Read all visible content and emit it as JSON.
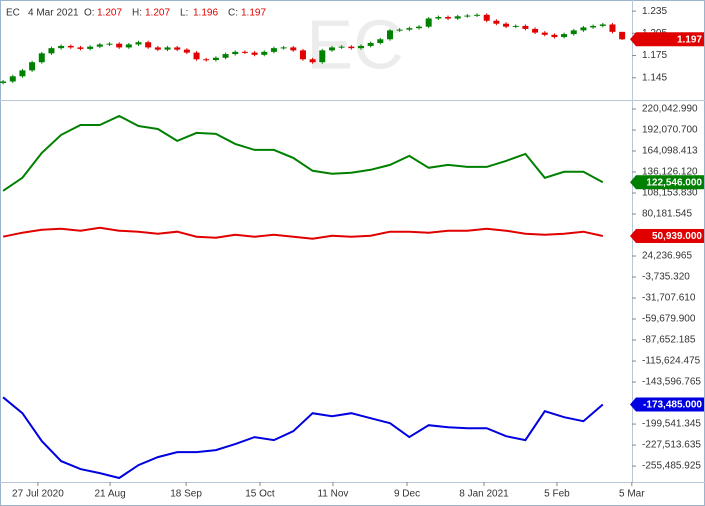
{
  "chart_data": [
    {
      "type": "candlestick",
      "symbol": "EC",
      "date": "4 Mar 2021",
      "header_labels": [
        "O:",
        "H:",
        "L:",
        "C:"
      ],
      "up_color": "#008000",
      "down_color": "#e00000",
      "xlim": [
        -0.16,
        32.51
      ],
      "ylim": [
        1.115,
        1.25
      ],
      "yticks": [
        1.235,
        1.205,
        1.175,
        1.145
      ],
      "x": [
        0,
        0.5,
        1,
        1.5,
        2,
        2.5,
        3,
        3.5,
        4,
        4.5,
        5,
        5.5,
        6,
        6.5,
        7,
        7.5,
        8,
        8.5,
        9,
        9.5,
        10,
        10.5,
        11,
        11.5,
        12,
        12.5,
        13,
        13.5,
        14,
        14.5,
        15,
        15.5,
        16,
        16.5,
        17,
        17.5,
        18,
        18.5,
        19,
        19.5,
        20,
        20.5,
        21,
        21.5,
        22,
        22.5,
        23,
        23.5,
        24,
        24.5,
        25,
        25.5,
        26,
        26.5,
        27,
        27.5,
        28,
        28.5,
        29,
        29.5,
        30,
        30.5,
        31,
        31.5,
        32
      ],
      "ohlc": [
        [
          1.138,
          1.142,
          1.136,
          1.14
        ],
        [
          1.14,
          1.149,
          1.138,
          1.147
        ],
        [
          1.147,
          1.157,
          1.145,
          1.155
        ],
        [
          1.155,
          1.168,
          1.153,
          1.166
        ],
        [
          1.166,
          1.18,
          1.164,
          1.178
        ],
        [
          1.178,
          1.187,
          1.176,
          1.185
        ],
        [
          1.185,
          1.19,
          1.183,
          1.188
        ],
        [
          1.188,
          1.19,
          1.184,
          1.186
        ],
        [
          1.186,
          1.188,
          1.182,
          1.184
        ],
        [
          1.184,
          1.189,
          1.182,
          1.187
        ],
        [
          1.187,
          1.192,
          1.185,
          1.19
        ],
        [
          1.19,
          1.193,
          1.188,
          1.191
        ],
        [
          1.191,
          1.193,
          1.184,
          1.186
        ],
        [
          1.186,
          1.192,
          1.184,
          1.19
        ],
        [
          1.19,
          1.195,
          1.188,
          1.193
        ],
        [
          1.193,
          1.195,
          1.184,
          1.186
        ],
        [
          1.186,
          1.188,
          1.181,
          1.183
        ],
        [
          1.183,
          1.188,
          1.181,
          1.186
        ],
        [
          1.186,
          1.188,
          1.181,
          1.183
        ],
        [
          1.183,
          1.185,
          1.177,
          1.179
        ],
        [
          1.179,
          1.181,
          1.168,
          1.17
        ],
        [
          1.17,
          1.172,
          1.167,
          1.169
        ],
        [
          1.169,
          1.174,
          1.167,
          1.172
        ],
        [
          1.172,
          1.179,
          1.17,
          1.177
        ],
        [
          1.177,
          1.182,
          1.175,
          1.18
        ],
        [
          1.18,
          1.182,
          1.177,
          1.179
        ],
        [
          1.179,
          1.181,
          1.174,
          1.176
        ],
        [
          1.176,
          1.182,
          1.174,
          1.18
        ],
        [
          1.18,
          1.187,
          1.178,
          1.185
        ],
        [
          1.185,
          1.188,
          1.183,
          1.186
        ],
        [
          1.186,
          1.188,
          1.18,
          1.182
        ],
        [
          1.182,
          1.184,
          1.168,
          1.17
        ],
        [
          1.17,
          1.172,
          1.164,
          1.166
        ],
        [
          1.166,
          1.184,
          1.164,
          1.182
        ],
        [
          1.182,
          1.188,
          1.18,
          1.186
        ],
        [
          1.186,
          1.189,
          1.184,
          1.187
        ],
        [
          1.187,
          1.189,
          1.183,
          1.185
        ],
        [
          1.185,
          1.19,
          1.183,
          1.188
        ],
        [
          1.188,
          1.194,
          1.186,
          1.192
        ],
        [
          1.192,
          1.199,
          1.19,
          1.197
        ],
        [
          1.197,
          1.211,
          1.195,
          1.209
        ],
        [
          1.209,
          1.212,
          1.207,
          1.21
        ],
        [
          1.21,
          1.214,
          1.208,
          1.212
        ],
        [
          1.212,
          1.216,
          1.21,
          1.214
        ],
        [
          1.214,
          1.227,
          1.212,
          1.225
        ],
        [
          1.225,
          1.229,
          1.223,
          1.227
        ],
        [
          1.227,
          1.229,
          1.223,
          1.225
        ],
        [
          1.225,
          1.23,
          1.223,
          1.228
        ],
        [
          1.228,
          1.231,
          1.226,
          1.229
        ],
        [
          1.229,
          1.232,
          1.227,
          1.23
        ],
        [
          1.23,
          1.232,
          1.22,
          1.222
        ],
        [
          1.222,
          1.224,
          1.216,
          1.218
        ],
        [
          1.218,
          1.22,
          1.212,
          1.214
        ],
        [
          1.214,
          1.217,
          1.212,
          1.215
        ],
        [
          1.215,
          1.217,
          1.209,
          1.211
        ],
        [
          1.211,
          1.213,
          1.204,
          1.206
        ],
        [
          1.206,
          1.208,
          1.201,
          1.203
        ],
        [
          1.203,
          1.205,
          1.198,
          1.2
        ],
        [
          1.2,
          1.206,
          1.198,
          1.204
        ],
        [
          1.204,
          1.211,
          1.202,
          1.209
        ],
        [
          1.209,
          1.215,
          1.207,
          1.213
        ],
        [
          1.213,
          1.217,
          1.211,
          1.215
        ],
        [
          1.215,
          1.219,
          1.213,
          1.217
        ],
        [
          1.217,
          1.219,
          1.205,
          1.207
        ],
        [
          1.207,
          1.207,
          1.196,
          1.197
        ]
      ]
    },
    {
      "type": "line",
      "xlim": [
        -0.16,
        32.51
      ],
      "ylim": [
        -276700,
        230700
      ],
      "x": [
        0,
        1,
        2,
        3,
        4,
        5,
        6,
        7,
        8,
        9,
        10,
        11,
        12,
        13,
        14,
        15,
        16,
        17,
        18,
        19,
        20,
        21,
        22,
        23,
        24,
        25,
        26,
        27,
        28,
        29,
        30,
        31
      ],
      "xticks": [
        {
          "value": 1.8,
          "label": "27 Jul 2020"
        },
        {
          "value": 5.53,
          "label": "21 Aug"
        },
        {
          "value": 9.46,
          "label": "18 Sep"
        },
        {
          "value": 13.28,
          "label": "15 Oct"
        },
        {
          "value": 17.05,
          "label": "11 Nov"
        },
        {
          "value": 20.88,
          "label": "9 Dec"
        },
        {
          "value": 24.86,
          "label": "8 Jan 2021"
        },
        {
          "value": 28.63,
          "label": "5 Feb"
        },
        {
          "value": 32.5,
          "label": "5 Mar"
        }
      ],
      "yticks": [
        {
          "value": 220042.99,
          "label": "220,042.990"
        },
        {
          "value": 192070.7,
          "label": "192,070.700"
        },
        {
          "value": 164098.413,
          "label": "164,098.413"
        },
        {
          "value": 136126.12,
          "label": "136,126.120"
        },
        {
          "value": 108153.83,
          "label": "108,153.830"
        },
        {
          "value": 80181.545,
          "label": "80,181.545"
        },
        {
          "value": 24236.965,
          "label": "24,236.965"
        },
        {
          "value": -3735.32,
          "label": "-3,735.320"
        },
        {
          "value": -31707.61,
          "label": "-31,707.610"
        },
        {
          "value": -59679.9,
          "label": "-59,679.900"
        },
        {
          "value": -87652.185,
          "label": "-87,652.185"
        },
        {
          "value": -115624.475,
          "label": "-115,624.475"
        },
        {
          "value": -143596.765,
          "label": "-143,596.765"
        },
        {
          "value": -199541.345,
          "label": "-199,541.345"
        },
        {
          "value": -227513.635,
          "label": "-227,513.635"
        },
        {
          "value": -255485.925,
          "label": "-255,485.925"
        }
      ],
      "series": [
        {
          "color": "#008000",
          "last_value_label": "122,546.000",
          "values": [
            111122,
            128390,
            161598,
            185507,
            198790,
            198790,
            210745,
            197462,
            193477,
            177537,
            188164,
            186835,
            173552,
            165583,
            165583,
            154956,
            137688,
            133703,
            135032,
            139017,
            145658,
            157613,
            141673,
            145658,
            143002,
            143002,
            150971,
            160269,
            128390,
            136360,
            136360,
            122546
          ]
        },
        {
          "color": "#e00000",
          "last_value_label": "50,939.000",
          "values": [
            50021,
            55334,
            59319,
            60647,
            57991,
            61975,
            57991,
            56662,
            54006,
            56662,
            50021,
            48693,
            52677,
            50021,
            52677,
            50021,
            47364,
            51349,
            50021,
            51349,
            56662,
            56662,
            55334,
            57991,
            57991,
            60647,
            57991,
            54006,
            52677,
            54006,
            56662,
            50939
          ]
        },
        {
          "color": "#0000e0",
          "last_value_label": "-173,485.000",
          "values": [
            -163836,
            -185089,
            -222281,
            -248847,
            -259473,
            -264787,
            -271428,
            -254160,
            -243534,
            -236892,
            -236892,
            -234236,
            -226266,
            -216968,
            -220953,
            -208998,
            -185089,
            -189073,
            -185089,
            -191730,
            -198372,
            -216968,
            -201028,
            -203685,
            -205013,
            -205013,
            -215639,
            -220953,
            -182432,
            -190402,
            -195715,
            -173485
          ]
        }
      ]
    }
  ]
}
